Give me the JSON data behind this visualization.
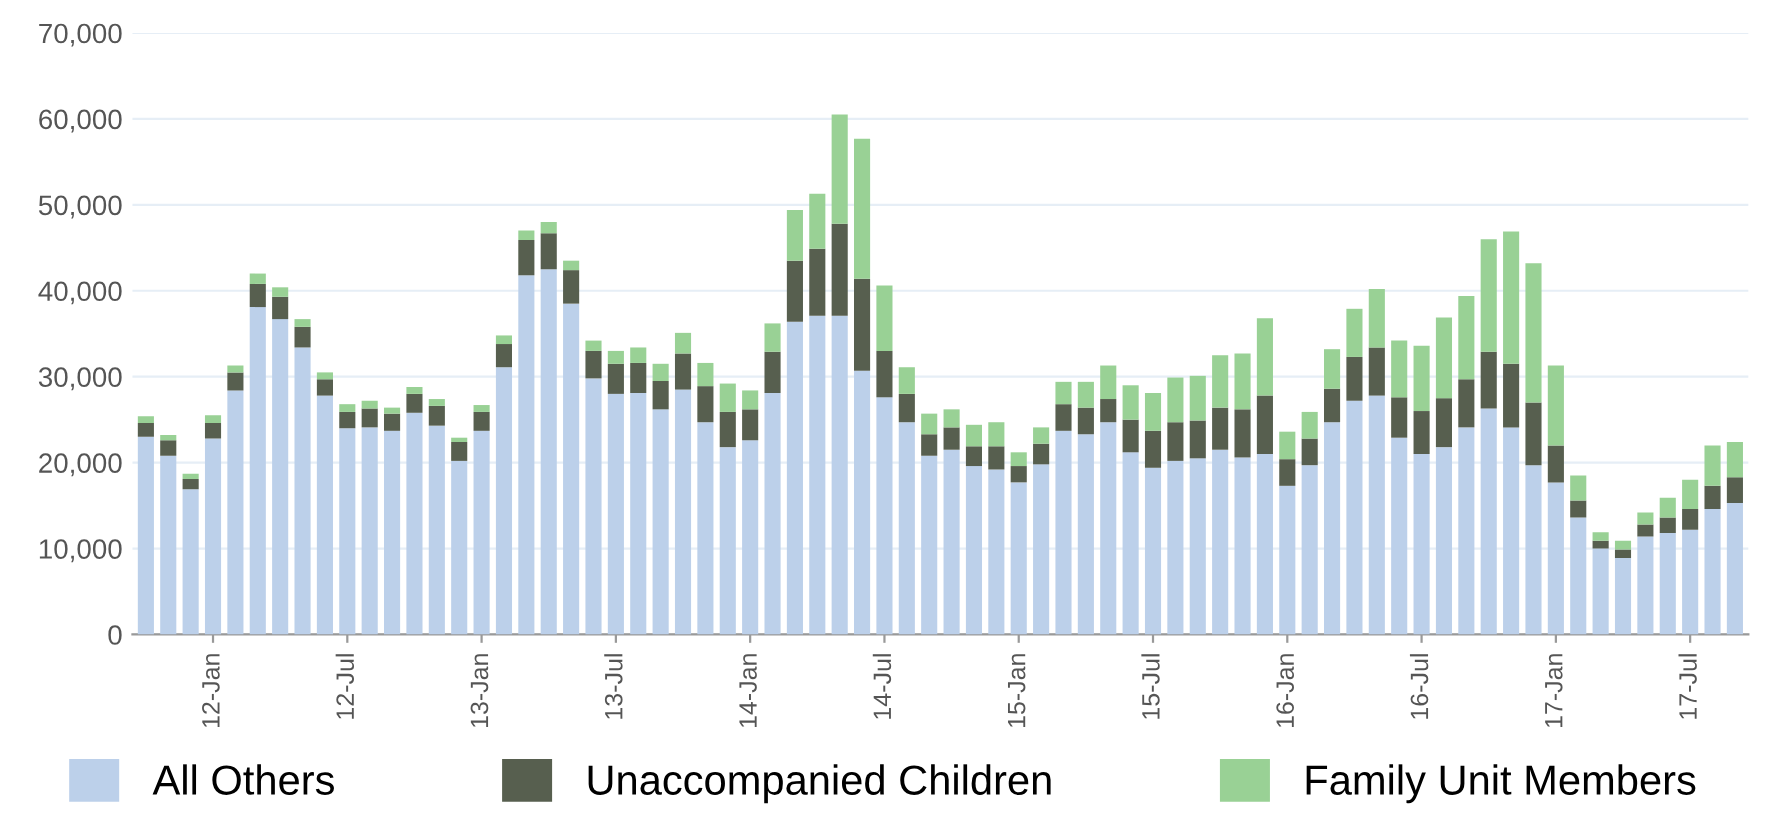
{
  "chart_data": {
    "type": "bar",
    "stacked": true,
    "categories": [
      null,
      null,
      null,
      "12-Jan",
      null,
      null,
      null,
      null,
      null,
      "12-Jul",
      null,
      null,
      null,
      null,
      null,
      "13-Jan",
      null,
      null,
      null,
      null,
      null,
      "13-Jul",
      null,
      null,
      null,
      null,
      null,
      "14-Jan",
      null,
      null,
      null,
      null,
      null,
      "14-Jul",
      null,
      null,
      null,
      null,
      null,
      "15-Jan",
      null,
      null,
      null,
      null,
      null,
      "15-Jul",
      null,
      null,
      null,
      null,
      null,
      "16-Jan",
      null,
      null,
      null,
      null,
      null,
      "16-Jul",
      null,
      null,
      null,
      null,
      null,
      "17-Jan",
      null,
      null,
      null,
      null,
      null,
      "17-Jul",
      null,
      null
    ],
    "series": [
      {
        "name": "All Others",
        "color": "#bcd0ea",
        "values": [
          23000,
          20800,
          16900,
          22800,
          28400,
          38100,
          36700,
          33400,
          27800,
          24000,
          24100,
          23700,
          25800,
          24300,
          20200,
          23700,
          31100,
          41800,
          42500,
          38500,
          29800,
          28000,
          28100,
          26200,
          28500,
          24700,
          21800,
          22600,
          28100,
          36400,
          37100,
          37100,
          30700,
          27600,
          24700,
          20800,
          21500,
          19600,
          19200,
          17700,
          19800,
          23700,
          23300,
          24700,
          21200,
          19400,
          20200,
          20500,
          21500,
          20600,
          21000,
          17300,
          19700,
          24700,
          27200,
          27800,
          22900,
          21000,
          21800,
          24100,
          26300,
          24100,
          19700,
          17700,
          13600,
          10000,
          8900,
          11400,
          11800,
          12200,
          14600,
          15300
        ]
      },
      {
        "name": "Unaccompanied Children",
        "color": "#575f4f",
        "values": [
          1600,
          1800,
          1200,
          1800,
          2100,
          2700,
          2600,
          2400,
          1900,
          1900,
          2200,
          2000,
          2200,
          2300,
          2200,
          2200,
          2700,
          4100,
          4200,
          3900,
          3200,
          3500,
          3500,
          3300,
          4200,
          4200,
          4100,
          3600,
          4800,
          7100,
          7800,
          10700,
          10700,
          5400,
          3300,
          2500,
          2600,
          2300,
          2700,
          1900,
          2400,
          3100,
          3100,
          2700,
          3800,
          4300,
          4500,
          4400,
          4900,
          5600,
          6800,
          3100,
          3100,
          3900,
          5100,
          5600,
          4700,
          5000,
          5700,
          5600,
          6600,
          7400,
          7300,
          4300,
          2000,
          900,
          1000,
          1400,
          1800,
          2400,
          2700,
          3000
        ]
      },
      {
        "name": "Family Unit Members",
        "color": "#99d195",
        "values": [
          800,
          600,
          600,
          900,
          800,
          1200,
          1100,
          900,
          800,
          900,
          900,
          700,
          800,
          800,
          500,
          800,
          1000,
          1100,
          1300,
          1100,
          1200,
          1500,
          1800,
          2000,
          2400,
          2700,
          3300,
          2200,
          3300,
          5900,
          6400,
          12700,
          16300,
          7600,
          3100,
          2400,
          2100,
          2500,
          2800,
          1600,
          1900,
          2600,
          3000,
          3900,
          4000,
          4400,
          5200,
          5200,
          6100,
          6500,
          9000,
          3200,
          3100,
          4600,
          5600,
          6800,
          6600,
          7600,
          9400,
          9700,
          13100,
          15400,
          16200,
          9300,
          2900,
          1000,
          1000,
          1400,
          2300,
          3400,
          4700,
          4100
        ]
      }
    ],
    "ylim": [
      0,
      70000
    ],
    "yticks": [
      0,
      {
        "value": 10000,
        "label": "10,000"
      },
      {
        "value": 20000,
        "label": "20,000"
      },
      {
        "value": 30000,
        "label": "30,000"
      },
      {
        "value": 40000,
        "label": "40,000"
      },
      {
        "value": 50000,
        "label": "50,000"
      },
      {
        "value": 60000,
        "label": "60,000"
      },
      {
        "value": 70000,
        "label": "70,000"
      }
    ],
    "grid": "y",
    "legend": "bottom"
  }
}
